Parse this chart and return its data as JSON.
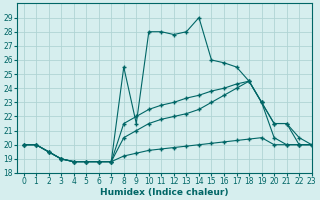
{
  "xlabel": "Humidex (Indice chaleur)",
  "bg_color": "#d6eeee",
  "grid_color": "#b0d4d4",
  "line_color": "#006666",
  "ylim": [
    18,
    30
  ],
  "xlim": [
    -0.5,
    23
  ],
  "yticks": [
    18,
    19,
    20,
    21,
    22,
    23,
    24,
    25,
    26,
    27,
    28,
    29
  ],
  "xticks": [
    0,
    1,
    2,
    3,
    4,
    5,
    6,
    7,
    8,
    9,
    10,
    11,
    12,
    13,
    14,
    15,
    16,
    17,
    18,
    19,
    20,
    21,
    22,
    23
  ],
  "lines": [
    {
      "x": [
        0,
        1,
        2,
        3,
        4,
        5,
        6,
        7,
        8,
        9,
        10,
        11,
        12,
        13,
        14,
        15,
        16,
        17,
        18,
        19,
        20,
        21,
        22,
        23
      ],
      "y": [
        20,
        20,
        19.5,
        19,
        18.8,
        18.8,
        18.8,
        18.8,
        19.2,
        19.4,
        19.6,
        19.7,
        19.8,
        19.9,
        20.0,
        20.1,
        20.2,
        20.3,
        20.4,
        20.5,
        20.0,
        20.0,
        20.0,
        20.0
      ]
    },
    {
      "x": [
        0,
        1,
        2,
        3,
        4,
        5,
        6,
        7,
        8,
        9,
        10,
        11,
        12,
        13,
        14,
        15,
        16,
        17,
        18,
        19,
        20,
        21,
        22,
        23
      ],
      "y": [
        20,
        20,
        19.5,
        19,
        18.8,
        18.8,
        18.8,
        18.8,
        20.5,
        21.0,
        21.5,
        21.8,
        22.0,
        22.2,
        22.5,
        23.0,
        23.5,
        24.0,
        24.5,
        23.0,
        20.5,
        20.0,
        20.0,
        20.0
      ]
    },
    {
      "x": [
        0,
        1,
        2,
        3,
        4,
        5,
        6,
        7,
        8,
        9,
        10,
        11,
        12,
        13,
        14,
        15,
        16,
        17,
        18,
        19,
        20,
        21,
        22,
        23
      ],
      "y": [
        20,
        20,
        19.5,
        19,
        18.8,
        18.8,
        18.8,
        18.8,
        21.5,
        22.0,
        22.5,
        22.8,
        23.0,
        23.3,
        23.5,
        23.8,
        24.0,
        24.3,
        24.5,
        23.0,
        21.5,
        21.5,
        20.5,
        20.0
      ]
    },
    {
      "x": [
        0,
        1,
        2,
        3,
        4,
        5,
        6,
        7,
        8,
        9,
        10,
        11,
        12,
        13,
        14,
        15,
        16,
        17,
        18,
        19,
        20,
        21,
        22,
        23
      ],
      "y": [
        20,
        20,
        19.5,
        19,
        18.8,
        18.8,
        18.8,
        18.8,
        25.5,
        21.5,
        28.0,
        28.0,
        27.8,
        28.0,
        29.0,
        26.0,
        25.8,
        25.5,
        24.5,
        23.0,
        21.5,
        21.5,
        20.0,
        20.0
      ]
    }
  ]
}
